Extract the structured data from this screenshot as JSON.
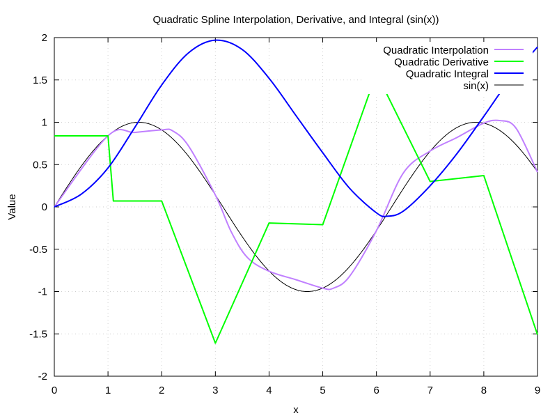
{
  "chart_data": {
    "type": "line",
    "title": "Quadratic Spline Interpolation, Derivative, and Integral (sin(x))",
    "xlabel": "x",
    "ylabel": "Value",
    "xlim": [
      0,
      9
    ],
    "ylim": [
      -2,
      2
    ],
    "grid": true,
    "legend_position": "top-right",
    "x_ticks": [
      0,
      1,
      2,
      3,
      4,
      5,
      6,
      7,
      8,
      9
    ],
    "y_ticks": [
      2,
      1.5,
      1,
      0.5,
      0,
      -0.5,
      -1,
      -1.5,
      -2
    ],
    "x_tick_labels": [
      "0",
      "1",
      "2",
      "3",
      "4",
      "5",
      "6",
      "7",
      "8",
      "9"
    ],
    "y_tick_labels": [
      "2",
      "1.5",
      "1",
      "0.5",
      "0",
      "-0.5",
      "-1",
      "-1.5",
      "-2"
    ],
    "series": [
      {
        "name": "Quadratic Interpolation",
        "color": "#c080ff",
        "x": [
          0,
          1,
          1.5,
          2,
          2.2,
          2.5,
          3,
          3.3,
          3.6,
          4,
          4.5,
          5,
          5.2,
          5.5,
          6,
          6.5,
          7,
          7.5,
          8,
          8.3,
          8.6,
          9
        ],
        "y": [
          0,
          0.84,
          0.88,
          0.91,
          0.9,
          0.72,
          0.14,
          -0.3,
          -0.6,
          -0.76,
          -0.86,
          -0.96,
          -0.96,
          -0.82,
          -0.28,
          0.4,
          0.66,
          0.82,
          0.99,
          1.02,
          0.93,
          0.41
        ]
      },
      {
        "name": "Quadratic Derivative",
        "color": "#00ff00",
        "x": [
          0,
          1,
          1.1,
          2,
          3,
          4,
          5,
          6,
          7,
          8,
          9
        ],
        "y": [
          0.84,
          0.84,
          0.07,
          0.07,
          -1.61,
          -0.19,
          -0.21,
          1.58,
          0.3,
          0.37,
          -1.51
        ]
      },
      {
        "name": "Quadratic Integral",
        "color": "#0000ff",
        "x": [
          0,
          0.5,
          1,
          1.5,
          2,
          2.5,
          3,
          3.5,
          4,
          4.5,
          5,
          5.5,
          6,
          6.2,
          6.5,
          7,
          7.5,
          8,
          8.5,
          9
        ],
        "y": [
          0,
          0.15,
          0.46,
          0.94,
          1.44,
          1.82,
          1.97,
          1.86,
          1.52,
          1.08,
          0.64,
          0.22,
          -0.07,
          -0.11,
          -0.05,
          0.25,
          0.63,
          1.07,
          1.52,
          1.89
        ]
      },
      {
        "name": "sin(x)",
        "color": "#000000",
        "function": "sin"
      }
    ]
  }
}
